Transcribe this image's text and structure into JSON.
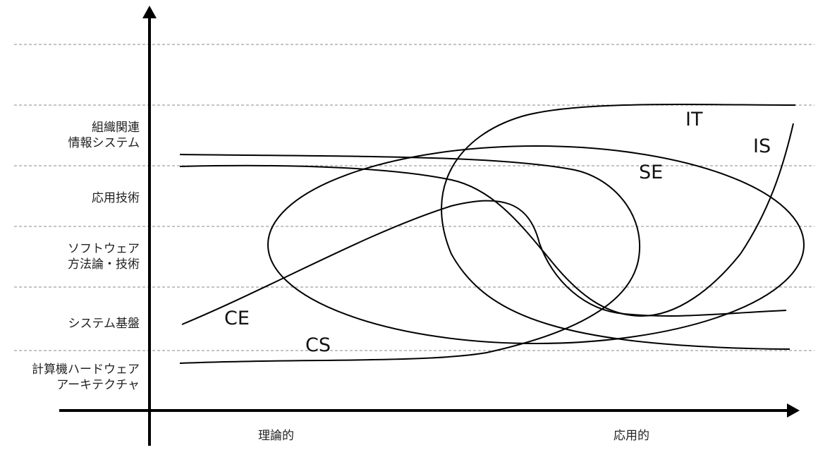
{
  "y_axis": {
    "levels": [
      {
        "id": "org",
        "lines": [
          "組織関連",
          "情報システム"
        ]
      },
      {
        "id": "app",
        "lines": [
          "応用技術"
        ]
      },
      {
        "id": "sw",
        "lines": [
          "ソフトウェア",
          "方法論・技術"
        ]
      },
      {
        "id": "sys",
        "lines": [
          "システム基盤"
        ]
      },
      {
        "id": "hw",
        "lines": [
          "計算機ハードウェア",
          "アーキテクチャ"
        ]
      }
    ]
  },
  "x_axis": {
    "left_label": "理論的",
    "right_label": "応用的"
  },
  "regions": [
    {
      "id": "CS",
      "label": "CS"
    },
    {
      "id": "CE",
      "label": "CE"
    },
    {
      "id": "SE",
      "label": "SE"
    },
    {
      "id": "IT",
      "label": "IT"
    },
    {
      "id": "IS",
      "label": "IS"
    }
  ]
}
